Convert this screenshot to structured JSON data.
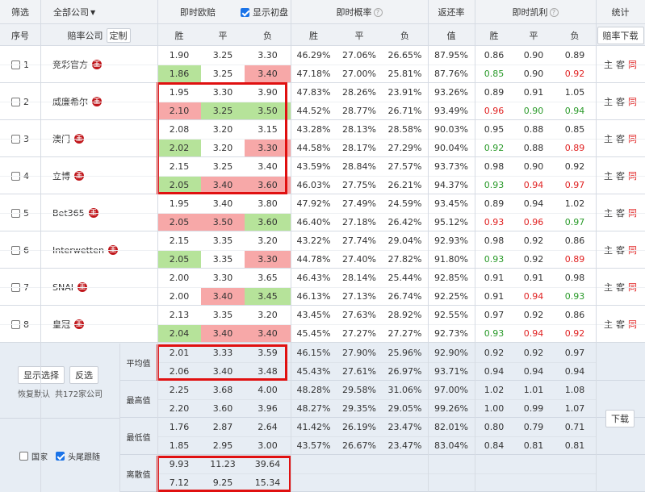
{
  "header": {
    "filter": "筛选",
    "company_select": "全部公司",
    "instant_odds": "即时欧赔",
    "show_initial": "显示初盘",
    "instant_prob": "即时概率",
    "return_rate": "返还率",
    "kelly": "即时凯利",
    "stats": "统计"
  },
  "subheader": {
    "index": "序号",
    "company": "赔率公司",
    "custom_btn": "定制",
    "win": "胜",
    "draw": "平",
    "lose": "负",
    "value": "值",
    "download_btn": "赔率下载"
  },
  "side_labels": {
    "home": "主",
    "away": "客",
    "same": "同"
  },
  "badge_char": "王",
  "companies": [
    {
      "idx": "1",
      "name": "竞彩官方",
      "o1": [
        "1.90",
        "3.25",
        "3.30"
      ],
      "o2": [
        "1.86",
        "3.25",
        "3.40"
      ],
      "p1": [
        "46.29%",
        "27.06%",
        "26.65%"
      ],
      "p2": [
        "47.18%",
        "27.00%",
        "25.81%"
      ],
      "r1": "87.95%",
      "r2": "87.76%",
      "k1": [
        "0.86",
        "0.90",
        "0.89"
      ],
      "k2": [
        "0.85",
        "0.90",
        "0.92"
      ]
    },
    {
      "idx": "2",
      "name": "威廉希尔",
      "o1": [
        "1.95",
        "3.30",
        "3.90"
      ],
      "o2": [
        "2.10",
        "3.25",
        "3.50"
      ],
      "p1": [
        "47.83%",
        "28.26%",
        "23.91%"
      ],
      "p2": [
        "44.52%",
        "28.77%",
        "26.71%"
      ],
      "r1": "93.26%",
      "r2": "93.49%",
      "k1": [
        "0.89",
        "0.91",
        "1.05"
      ],
      "k2": [
        "0.96",
        "0.90",
        "0.94"
      ]
    },
    {
      "idx": "3",
      "name": "澳门",
      "o1": [
        "2.08",
        "3.20",
        "3.15"
      ],
      "o2": [
        "2.02",
        "3.20",
        "3.30"
      ],
      "p1": [
        "43.28%",
        "28.13%",
        "28.58%"
      ],
      "p2": [
        "44.58%",
        "28.17%",
        "27.29%"
      ],
      "r1": "90.03%",
      "r2": "90.04%",
      "k1": [
        "0.95",
        "0.88",
        "0.85"
      ],
      "k2": [
        "0.92",
        "0.88",
        "0.89"
      ]
    },
    {
      "idx": "4",
      "name": "立博",
      "o1": [
        "2.15",
        "3.25",
        "3.40"
      ],
      "o2": [
        "2.05",
        "3.40",
        "3.60"
      ],
      "p1": [
        "43.59%",
        "28.84%",
        "27.57%"
      ],
      "p2": [
        "46.03%",
        "27.75%",
        "26.21%"
      ],
      "r1": "93.73%",
      "r2": "94.37%",
      "k1": [
        "0.98",
        "0.90",
        "0.92"
      ],
      "k2": [
        "0.93",
        "0.94",
        "0.97"
      ]
    },
    {
      "idx": "5",
      "name": "Bet365",
      "o1": [
        "1.95",
        "3.40",
        "3.80"
      ],
      "o2": [
        "2.05",
        "3.50",
        "3.60"
      ],
      "p1": [
        "47.92%",
        "27.49%",
        "24.59%"
      ],
      "p2": [
        "46.40%",
        "27.18%",
        "26.42%"
      ],
      "r1": "93.45%",
      "r2": "95.12%",
      "k1": [
        "0.89",
        "0.94",
        "1.02"
      ],
      "k2": [
        "0.93",
        "0.96",
        "0.97"
      ]
    },
    {
      "idx": "6",
      "name": "Interwetten",
      "o1": [
        "2.15",
        "3.35",
        "3.20"
      ],
      "o2": [
        "2.05",
        "3.35",
        "3.30"
      ],
      "p1": [
        "43.22%",
        "27.74%",
        "29.04%"
      ],
      "p2": [
        "44.78%",
        "27.40%",
        "27.82%"
      ],
      "r1": "92.93%",
      "r2": "91.80%",
      "k1": [
        "0.98",
        "0.92",
        "0.86"
      ],
      "k2": [
        "0.93",
        "0.92",
        "0.89"
      ]
    },
    {
      "idx": "7",
      "name": "SNAI",
      "o1": [
        "2.00",
        "3.30",
        "3.65"
      ],
      "o2": [
        "2.00",
        "3.40",
        "3.45"
      ],
      "p1": [
        "46.43%",
        "28.14%",
        "25.44%"
      ],
      "p2": [
        "46.13%",
        "27.13%",
        "26.74%"
      ],
      "r1": "92.85%",
      "r2": "92.25%",
      "k1": [
        "0.91",
        "0.91",
        "0.98"
      ],
      "k2": [
        "0.91",
        "0.94",
        "0.93"
      ]
    },
    {
      "idx": "8",
      "name": "皇冠",
      "o1": [
        "2.13",
        "3.35",
        "3.20"
      ],
      "o2": [
        "2.04",
        "3.40",
        "3.40"
      ],
      "p1": [
        "43.45%",
        "27.63%",
        "28.92%"
      ],
      "p2": [
        "45.45%",
        "27.27%",
        "27.27%"
      ],
      "r1": "92.55%",
      "r2": "92.73%",
      "k1": [
        "0.97",
        "0.92",
        "0.86"
      ],
      "k2": [
        "0.93",
        "0.94",
        "0.92"
      ]
    }
  ],
  "summary": {
    "show_selected_btn": "显示选择",
    "invert_btn": "反选",
    "restore_default": "恢复默认",
    "total_companies": "共172家公司",
    "country_label": "国家",
    "head_tail_label": "头尾跟随",
    "download_btn": "下载",
    "rows": [
      {
        "label": "平均值",
        "o1": [
          "2.01",
          "3.33",
          "3.59"
        ],
        "o2": [
          "2.06",
          "3.40",
          "3.48"
        ],
        "p1": [
          "46.15%",
          "27.90%",
          "25.96%"
        ],
        "p2": [
          "45.43%",
          "27.61%",
          "26.97%"
        ],
        "r1": "92.90%",
        "r2": "93.71%",
        "k1": [
          "0.92",
          "0.92",
          "0.97"
        ],
        "k2": [
          "0.94",
          "0.94",
          "0.94"
        ]
      },
      {
        "label": "最高值",
        "o1": [
          "2.25",
          "3.68",
          "4.00"
        ],
        "o2": [
          "2.20",
          "3.60",
          "3.96"
        ],
        "p1": [
          "48.28%",
          "29.58%",
          "31.06%"
        ],
        "p2": [
          "48.27%",
          "29.35%",
          "29.05%"
        ],
        "r1": "97.00%",
        "r2": "99.26%",
        "k1": [
          "1.02",
          "1.01",
          "1.08"
        ],
        "k2": [
          "1.00",
          "0.99",
          "1.07"
        ]
      },
      {
        "label": "最低值",
        "o1": [
          "1.76",
          "2.87",
          "2.64"
        ],
        "o2": [
          "1.85",
          "2.95",
          "3.00"
        ],
        "p1": [
          "41.42%",
          "26.19%",
          "23.47%"
        ],
        "p2": [
          "43.57%",
          "26.67%",
          "23.47%"
        ],
        "r1": "82.01%",
        "r2": "83.04%",
        "k1": [
          "0.80",
          "0.79",
          "0.71"
        ],
        "k2": [
          "0.84",
          "0.81",
          "0.81"
        ]
      },
      {
        "label": "离散值",
        "o1": [
          "9.93",
          "11.23",
          "39.64"
        ],
        "o2": [
          "7.12",
          "9.25",
          "15.34"
        ],
        "p1": [
          "",
          "",
          ""
        ],
        "p2": [
          "",
          "",
          ""
        ],
        "r1": "",
        "r2": "",
        "k1": [
          "",
          "",
          ""
        ],
        "k2": [
          "",
          "",
          ""
        ]
      }
    ]
  },
  "colors": {
    "up": "#f7a8a8",
    "down": "#b6e39a",
    "red_text": "#e02020",
    "green_text": "#2a9a2a",
    "box": "#e01010"
  }
}
